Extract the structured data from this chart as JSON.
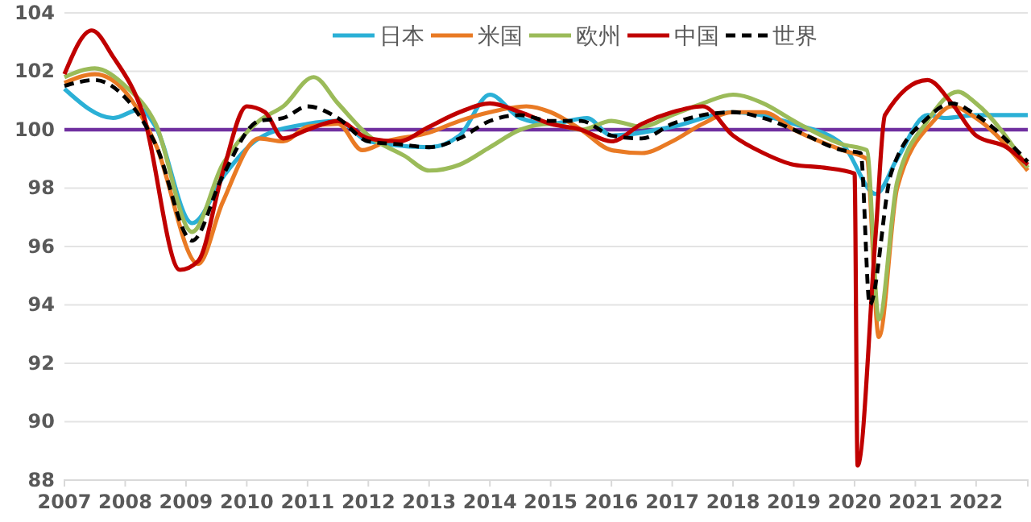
{
  "chart_data": {
    "type": "line",
    "xlim": [
      2007,
      2022.85
    ],
    "xticks": [
      2007,
      2008,
      2009,
      2010,
      2011,
      2012,
      2013,
      2014,
      2015,
      2016,
      2017,
      2018,
      2019,
      2020,
      2021,
      2022
    ],
    "ylim": [
      88,
      104
    ],
    "yticks": [
      88,
      90,
      92,
      94,
      96,
      98,
      100,
      102,
      104
    ],
    "grid": "y",
    "legend": "top",
    "ref_lines": [
      {
        "axis": "y",
        "value": 100,
        "color": "#7030a0"
      }
    ],
    "series": [
      {
        "name": "日本",
        "color": "#2bb0d6",
        "x": [
          2007,
          2007.8,
          2008.25,
          2008.5,
          2009.1,
          2009.65,
          2010.2,
          2011,
          2011.5,
          2012,
          2013,
          2013.5,
          2014,
          2014.5,
          2015,
          2015.6,
          2016,
          2017,
          2018,
          2019,
          2019.8,
          2020.35,
          2020.7,
          2021.2,
          2021.5,
          2022,
          2022.85
        ],
        "values": [
          101.4,
          100.4,
          100.7,
          100.1,
          96.8,
          98.5,
          99.7,
          100.2,
          100.3,
          99.6,
          99.4,
          99.8,
          101.2,
          100.4,
          100.2,
          100.4,
          99.8,
          100.1,
          100.6,
          100.2,
          99.5,
          97.8,
          99,
          100.5,
          100.4,
          100.5,
          100.5
        ]
      },
      {
        "name": "米国",
        "color": "#e97a24",
        "x": [
          2007,
          2007.5,
          2008,
          2008.5,
          2009.2,
          2009.6,
          2010.2,
          2010.6,
          2011,
          2011.5,
          2011.9,
          2012.3,
          2013,
          2013.5,
          2014,
          2014.6,
          2015,
          2015.5,
          2016,
          2016.5,
          2017,
          2017.5,
          2018,
          2018.5,
          2019,
          2019.8,
          2020.2,
          2020.4,
          2020.7,
          2021.3,
          2021.6,
          2022,
          2022.85
        ],
        "values": [
          101.6,
          101.9,
          101.3,
          99.5,
          95.4,
          97.5,
          99.7,
          99.6,
          100.1,
          100.2,
          99.3,
          99.6,
          99.9,
          100.3,
          100.6,
          100.8,
          100.6,
          100,
          99.3,
          99.2,
          99.6,
          100.2,
          100.6,
          100.6,
          100,
          99.3,
          99,
          92.9,
          98,
          100.3,
          100.8,
          100.4,
          98.6
        ]
      },
      {
        "name": "欧州",
        "color": "#9bbb59",
        "x": [
          2007,
          2007.5,
          2008,
          2008.5,
          2009.1,
          2009.6,
          2010.2,
          2010.6,
          2011.1,
          2011.5,
          2012,
          2012.6,
          2013,
          2013.5,
          2014,
          2014.5,
          2015,
          2015.5,
          2016,
          2016.5,
          2017,
          2017.5,
          2018,
          2018.5,
          2019,
          2019.8,
          2020.2,
          2020.4,
          2020.7,
          2021.2,
          2021.7,
          2022,
          2022.85
        ],
        "values": [
          101.8,
          102.1,
          101.5,
          100.2,
          96.5,
          98.8,
          100.3,
          100.8,
          101.8,
          100.9,
          99.8,
          99.1,
          98.6,
          98.8,
          99.4,
          100,
          100.2,
          100,
          100.3,
          100.1,
          100.5,
          100.9,
          101.2,
          100.9,
          100.3,
          99.5,
          99.3,
          93.5,
          98.2,
          100.3,
          101.3,
          100.9,
          98.7
        ]
      },
      {
        "name": "中国",
        "color": "#c00000",
        "x": [
          2007,
          2007.45,
          2007.8,
          2008.3,
          2008.9,
          2009.2,
          2009.6,
          2010,
          2010.3,
          2010.6,
          2011,
          2011.5,
          2012,
          2012.5,
          2013,
          2013.5,
          2014,
          2014.5,
          2015,
          2015.5,
          2016,
          2016.5,
          2017,
          2017.5,
          2018,
          2018.5,
          2019,
          2019.5,
          2020,
          2020.05,
          2020.35,
          2020.5,
          2021.2,
          2021.6,
          2022,
          2022.5,
          2022.85
        ],
        "values": [
          101.9,
          103.4,
          102.5,
          100.5,
          95.2,
          95.5,
          98.5,
          100.8,
          100.6,
          99.7,
          100,
          100.3,
          99.7,
          99.6,
          100.1,
          100.6,
          100.9,
          100.6,
          100.2,
          100,
          99.6,
          100.2,
          100.6,
          100.8,
          99.8,
          99.2,
          98.8,
          98.7,
          98.5,
          88.5,
          96.5,
          100.5,
          101.7,
          100.9,
          99.8,
          99.4,
          98.8
        ]
      },
      {
        "name": "世界",
        "color": "#000000",
        "line_style": "dashed",
        "x": [
          2007,
          2007.5,
          2008,
          2008.5,
          2009.1,
          2009.6,
          2010.2,
          2010.6,
          2011,
          2011.5,
          2012,
          2012.5,
          2013,
          2013.5,
          2014,
          2014.5,
          2015,
          2015.5,
          2016,
          2016.5,
          2017,
          2017.5,
          2018,
          2018.5,
          2019,
          2019.8,
          2020.1,
          2020.25,
          2020.6,
          2021.2,
          2021.6,
          2022,
          2022.85
        ],
        "values": [
          101.5,
          101.7,
          101.1,
          99.5,
          96.2,
          98.4,
          100.3,
          100.4,
          100.8,
          100.4,
          99.6,
          99.5,
          99.4,
          99.7,
          100.3,
          100.5,
          100.3,
          100.3,
          99.8,
          99.7,
          100.2,
          100.5,
          100.6,
          100.4,
          100,
          99.3,
          99.2,
          94,
          98.5,
          100.4,
          100.9,
          100.5,
          98.9
        ]
      }
    ]
  }
}
